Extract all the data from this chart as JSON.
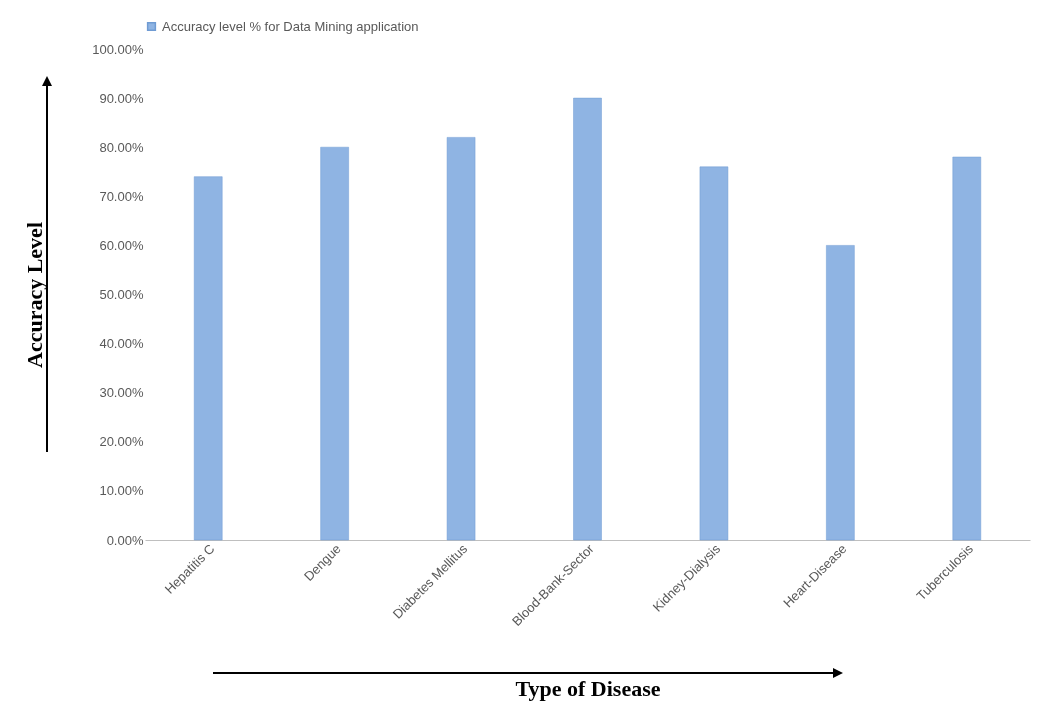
{
  "chart_data": {
    "type": "bar",
    "xlabel": "Type of Disease",
    "ylabel": "Accuracy Level",
    "categories": [
      "Hepatitis C",
      "Dengue",
      "Diabetes Mellitus",
      "Blood-Bank-Sector",
      "Kidney-Dialysis",
      "Heart-Disease",
      "Tuberculosis"
    ],
    "series": [
      {
        "name": "Accuracy level % for Data Mining application",
        "color": "#8fb4e3",
        "values": [
          74,
          80,
          82,
          90,
          76,
          60,
          78
        ]
      }
    ],
    "ylim": [
      0,
      100
    ],
    "yticks": [
      {
        "value": 0,
        "label": "0.00%"
      },
      {
        "value": 10,
        "label": "10.00%"
      },
      {
        "value": 20,
        "label": "20.00%"
      },
      {
        "value": 30,
        "label": "30.00%"
      },
      {
        "value": 40,
        "label": "40.00%"
      },
      {
        "value": 50,
        "label": "50.00%"
      },
      {
        "value": 60,
        "label": "60.00%"
      },
      {
        "value": 70,
        "label": "70.00%"
      },
      {
        "value": 80,
        "label": "80.00%"
      },
      {
        "value": 90,
        "label": "90.00%"
      },
      {
        "value": 100,
        "label": "100.00%"
      }
    ],
    "grid": false,
    "legend": "top"
  }
}
